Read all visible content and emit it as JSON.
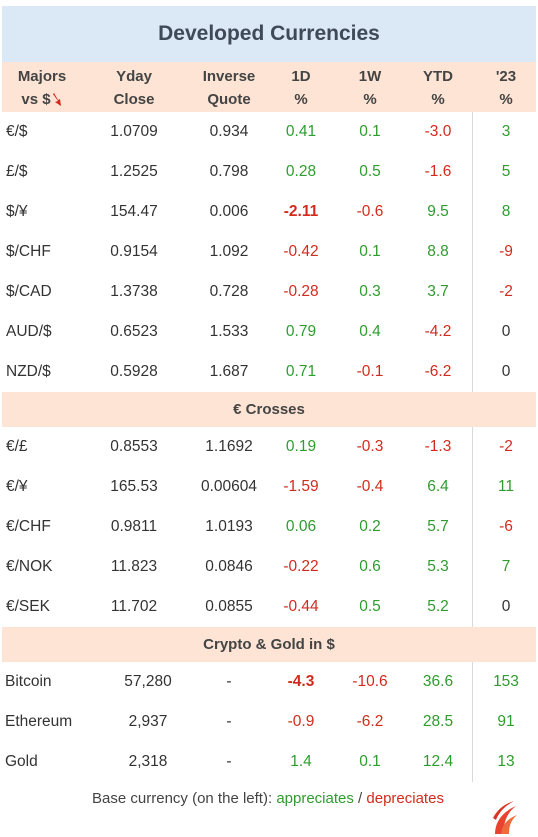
{
  "title": "Developed Currencies",
  "header": {
    "col0_l1": "Majors",
    "col0_l2": "vs $",
    "col1_l1": "Yday",
    "col1_l2": "Close",
    "col2_l1": "Inverse",
    "col2_l2": "Quote",
    "col3_l1": "1D",
    "col3_l2": "%",
    "col4_l1": "1W",
    "col4_l2": "%",
    "col5_l1": "YTD",
    "col5_l2": "%",
    "col6_l1": "'23",
    "col6_l2": "%"
  },
  "colors": {
    "positive": "#2f9c2f",
    "negative": "#d22b1e",
    "header_bg": "#fde4d5",
    "title_bg": "#dbe8f5"
  },
  "sections": [
    {
      "rows": [
        {
          "name": "€/$",
          "close": "1.0709",
          "inverse": "0.934",
          "d1": "0.41",
          "w1": "0.1",
          "ytd": "-3.0",
          "y23": "3"
        },
        {
          "name": "£/$",
          "close": "1.2525",
          "inverse": "0.798",
          "d1": "0.28",
          "w1": "0.5",
          "ytd": "-1.6",
          "y23": "5"
        },
        {
          "name": "$/¥",
          "close": "154.47",
          "inverse": "0.006",
          "d1": "-2.11",
          "w1": "-0.6",
          "ytd": "9.5",
          "y23": "8"
        },
        {
          "name": "$/CHF",
          "close": "0.9154",
          "inverse": "1.092",
          "d1": "-0.42",
          "w1": "0.1",
          "ytd": "8.8",
          "y23": "-9"
        },
        {
          "name": "$/CAD",
          "close": "1.3738",
          "inverse": "0.728",
          "d1": "-0.28",
          "w1": "0.3",
          "ytd": "3.7",
          "y23": "-2"
        },
        {
          "name": "AUD/$",
          "close": "0.6523",
          "inverse": "1.533",
          "d1": "0.79",
          "w1": "0.4",
          "ytd": "-4.2",
          "y23": "0"
        },
        {
          "name": "NZD/$",
          "close": "0.5928",
          "inverse": "1.687",
          "d1": "0.71",
          "w1": "-0.1",
          "ytd": "-6.2",
          "y23": "0"
        }
      ]
    },
    {
      "title": "€ Crosses",
      "rows": [
        {
          "name": "€/£",
          "close": "0.8553",
          "inverse": "1.1692",
          "d1": "0.19",
          "w1": "-0.3",
          "ytd": "-1.3",
          "y23": "-2"
        },
        {
          "name": "€/¥",
          "close": "165.53",
          "inverse": "0.00604",
          "d1": "-1.59",
          "w1": "-0.4",
          "ytd": "6.4",
          "y23": "11"
        },
        {
          "name": "€/CHF",
          "close": "0.9811",
          "inverse": "1.0193",
          "d1": "0.06",
          "w1": "0.2",
          "ytd": "5.7",
          "y23": "-6"
        },
        {
          "name": "€/NOK",
          "close": "11.823",
          "inverse": "0.0846",
          "d1": "-0.22",
          "w1": "0.6",
          "ytd": "5.3",
          "y23": "7"
        },
        {
          "name": "€/SEK",
          "close": "11.702",
          "inverse": "0.0855",
          "d1": "-0.44",
          "w1": "0.5",
          "ytd": "5.2",
          "y23": "0"
        }
      ]
    },
    {
      "title": "Crypto & Gold in $",
      "rows": [
        {
          "name": "Bitcoin",
          "close": "57,280",
          "inverse": "-",
          "d1": "-4.3",
          "w1": "-10.6",
          "ytd": "36.6",
          "y23": "153"
        },
        {
          "name": "Ethereum",
          "close": "2,937",
          "inverse": "-",
          "d1": "-0.9",
          "w1": "-6.2",
          "ytd": "28.5",
          "y23": "91"
        },
        {
          "name": "Gold",
          "close": "2,318",
          "inverse": "-",
          "d1": "1.4",
          "w1": "0.1",
          "ytd": "12.4",
          "y23": "13"
        }
      ]
    }
  ],
  "bold_d1": [
    "$/¥",
    "Bitcoin"
  ],
  "footer": {
    "prefix": "Base currency (on the left):",
    "appreciates": "appreciates",
    "sep": "/",
    "depreciates": "depreciates"
  },
  "icons": {
    "arrow": "down-arrow-icon",
    "logo": "flame-logo-icon"
  }
}
